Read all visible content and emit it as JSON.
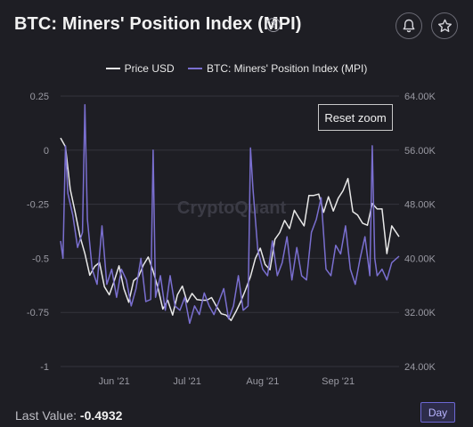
{
  "header": {
    "title": "BTC: Miners' Position Index (MPI)",
    "help_glyph": "?",
    "icons": [
      "help-icon",
      "bell-icon",
      "star-icon"
    ]
  },
  "legend": {
    "price_label": "Price USD",
    "mpi_label": "BTC: Miners' Position Index (MPI)"
  },
  "watermark": "CryptoQuant",
  "reset_zoom_label": "Reset zoom",
  "footer": {
    "last_value_label": "Last Value:",
    "last_value": "-0.4932",
    "interval_label": "Day"
  },
  "colors": {
    "background": "#1e1e24",
    "price": "#e8e8e8",
    "mpi": "#7a6fd0",
    "accent": "#6c67d4"
  },
  "chart_data": {
    "type": "line",
    "x_ticks": [
      "Jun '21",
      "Jul '21",
      "Aug '21",
      "Sep '21"
    ],
    "x_range": [
      "2021-05-10",
      "2021-09-26"
    ],
    "left_axis": {
      "ticks": [
        "0.25",
        "0",
        "-0.25",
        "-0.5",
        "-0.75",
        "-1"
      ],
      "range": [
        -1,
        0.25
      ]
    },
    "right_axis": {
      "ticks": [
        "64.00K",
        "56.00K",
        "48.00K",
        "40.00K",
        "32.00K",
        "24.00K"
      ],
      "range": [
        24000,
        64000
      ]
    },
    "grid": true,
    "legend_position": "top-center",
    "series": [
      {
        "name": "Price USD",
        "axis": "right",
        "dates": [
          "2021-05-10",
          "2021-05-12",
          "2021-05-14",
          "2021-05-16",
          "2021-05-18",
          "2021-05-20",
          "2021-05-22",
          "2021-05-24",
          "2021-05-26",
          "2021-05-28",
          "2021-05-30",
          "2021-06-01",
          "2021-06-03",
          "2021-06-05",
          "2021-06-07",
          "2021-06-09",
          "2021-06-11",
          "2021-06-13",
          "2021-06-15",
          "2021-06-17",
          "2021-06-19",
          "2021-06-21",
          "2021-06-23",
          "2021-06-25",
          "2021-06-27",
          "2021-06-29",
          "2021-07-01",
          "2021-07-03",
          "2021-07-05",
          "2021-07-07",
          "2021-07-09",
          "2021-07-11",
          "2021-07-13",
          "2021-07-15",
          "2021-07-17",
          "2021-07-19",
          "2021-07-21",
          "2021-07-23",
          "2021-07-25",
          "2021-07-27",
          "2021-07-29",
          "2021-07-31",
          "2021-08-02",
          "2021-08-04",
          "2021-08-06",
          "2021-08-08",
          "2021-08-10",
          "2021-08-12",
          "2021-08-14",
          "2021-08-16",
          "2021-08-18",
          "2021-08-20",
          "2021-08-22",
          "2021-08-24",
          "2021-08-26",
          "2021-08-28",
          "2021-08-30",
          "2021-09-01",
          "2021-09-03",
          "2021-09-05",
          "2021-09-07",
          "2021-09-09",
          "2021-09-11",
          "2021-09-13",
          "2021-09-15",
          "2021-09-17",
          "2021-09-19",
          "2021-09-21",
          "2021-09-23",
          "2021-09-26"
        ],
        "values": [
          57800,
          56500,
          50200,
          46800,
          43200,
          40700,
          37500,
          38800,
          39400,
          35800,
          34600,
          36600,
          38900,
          35500,
          33500,
          36700,
          37300,
          39000,
          40200,
          38100,
          35600,
          32500,
          33800,
          31600,
          34600,
          35900,
          33500,
          34800,
          33900,
          33800,
          33800,
          34200,
          32900,
          31800,
          31600,
          30800,
          32100,
          33600,
          35400,
          37300,
          40000,
          41500,
          39100,
          38300,
          42800,
          43800,
          45600,
          44400,
          47100,
          45900,
          44800,
          49300,
          49300,
          49500,
          46800,
          49100,
          47000,
          48900,
          50000,
          51800,
          46900,
          46400,
          45200,
          44900,
          48100,
          47300,
          47300,
          40700,
          44800,
          43200
        ]
      },
      {
        "name": "BTC: Miners' Position Index (MPI)",
        "axis": "left",
        "dates": [
          "2021-05-10",
          "2021-05-11",
          "2021-05-12",
          "2021-05-13",
          "2021-05-15",
          "2021-05-17",
          "2021-05-19",
          "2021-05-20",
          "2021-05-21",
          "2021-05-23",
          "2021-05-25",
          "2021-05-27",
          "2021-05-29",
          "2021-05-31",
          "2021-06-02",
          "2021-06-04",
          "2021-06-06",
          "2021-06-08",
          "2021-06-10",
          "2021-06-12",
          "2021-06-14",
          "2021-06-16",
          "2021-06-17",
          "2021-06-18",
          "2021-06-20",
          "2021-06-22",
          "2021-06-24",
          "2021-06-26",
          "2021-06-28",
          "2021-06-30",
          "2021-07-02",
          "2021-07-04",
          "2021-07-06",
          "2021-07-08",
          "2021-07-10",
          "2021-07-12",
          "2021-07-14",
          "2021-07-16",
          "2021-07-18",
          "2021-07-20",
          "2021-07-22",
          "2021-07-24",
          "2021-07-26",
          "2021-07-27",
          "2021-07-28",
          "2021-07-30",
          "2021-08-01",
          "2021-08-03",
          "2021-08-05",
          "2021-08-07",
          "2021-08-09",
          "2021-08-11",
          "2021-08-13",
          "2021-08-15",
          "2021-08-17",
          "2021-08-19",
          "2021-08-21",
          "2021-08-23",
          "2021-08-25",
          "2021-08-27",
          "2021-08-29",
          "2021-08-31",
          "2021-09-02",
          "2021-09-04",
          "2021-09-06",
          "2021-09-08",
          "2021-09-10",
          "2021-09-12",
          "2021-09-14",
          "2021-09-15",
          "2021-09-16",
          "2021-09-17",
          "2021-09-19",
          "2021-09-21",
          "2021-09-23",
          "2021-09-26"
        ],
        "values": [
          -0.42,
          -0.5,
          0.02,
          -0.2,
          -0.3,
          -0.45,
          -0.38,
          0.21,
          -0.32,
          -0.55,
          -0.62,
          -0.35,
          -0.62,
          -0.55,
          -0.68,
          -0.55,
          -0.6,
          -0.72,
          -0.64,
          -0.5,
          -0.7,
          -0.69,
          0.0,
          -0.68,
          -0.58,
          -0.74,
          -0.58,
          -0.72,
          -0.74,
          -0.68,
          -0.8,
          -0.72,
          -0.76,
          -0.66,
          -0.72,
          -0.76,
          -0.7,
          -0.64,
          -0.78,
          -0.72,
          -0.58,
          -0.74,
          -0.72,
          0.01,
          -0.18,
          -0.46,
          -0.55,
          -0.58,
          -0.42,
          -0.58,
          -0.52,
          -0.4,
          -0.6,
          -0.45,
          -0.58,
          -0.6,
          -0.38,
          -0.32,
          -0.22,
          -0.55,
          -0.58,
          -0.44,
          -0.48,
          -0.35,
          -0.55,
          -0.62,
          -0.5,
          -0.4,
          -0.58,
          0.02,
          -0.5,
          -0.58,
          -0.55,
          -0.6,
          -0.52,
          -0.49
        ]
      }
    ]
  }
}
